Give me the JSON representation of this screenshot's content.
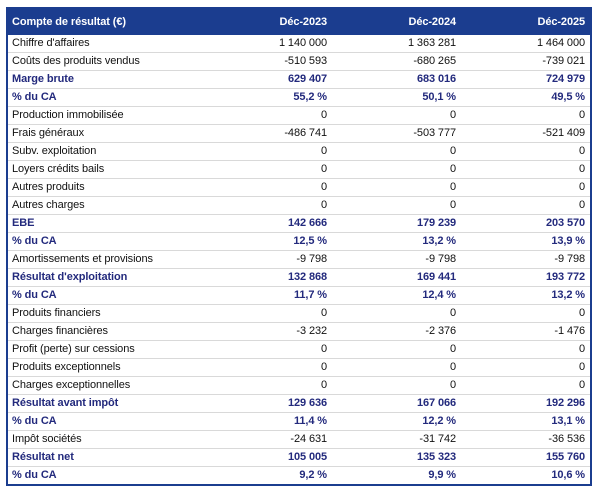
{
  "chart_data": {
    "type": "table",
    "title": "Compte de résultat (€)",
    "columns": [
      "Déc-2023",
      "Déc-2024",
      "Déc-2025"
    ],
    "rows": [
      {
        "label": "Chiffre d'affaires",
        "values": [
          "1 140 000",
          "1 363 281",
          "1 464 000"
        ],
        "bold": false
      },
      {
        "label": "Coûts des produits vendus",
        "values": [
          "-510 593",
          "-680 265",
          "-739 021"
        ],
        "bold": false
      },
      {
        "label": "Marge brute",
        "values": [
          "629 407",
          "683 016",
          "724 979"
        ],
        "bold": true
      },
      {
        "label": "% du CA",
        "values": [
          "55,2 %",
          "50,1 %",
          "49,5 %"
        ],
        "bold": true
      },
      {
        "label": "Production immobilisée",
        "values": [
          "0",
          "0",
          "0"
        ],
        "bold": false
      },
      {
        "label": "Frais généraux",
        "values": [
          "-486 741",
          "-503 777",
          "-521 409"
        ],
        "bold": false
      },
      {
        "label": "Subv. exploitation",
        "values": [
          "0",
          "0",
          "0"
        ],
        "bold": false
      },
      {
        "label": "Loyers crédits bails",
        "values": [
          "0",
          "0",
          "0"
        ],
        "bold": false
      },
      {
        "label": "Autres produits",
        "values": [
          "0",
          "0",
          "0"
        ],
        "bold": false
      },
      {
        "label": "Autres charges",
        "values": [
          "0",
          "0",
          "0"
        ],
        "bold": false
      },
      {
        "label": "EBE",
        "values": [
          "142 666",
          "179 239",
          "203 570"
        ],
        "bold": true
      },
      {
        "label": "% du CA",
        "values": [
          "12,5 %",
          "13,2 %",
          "13,9 %"
        ],
        "bold": true
      },
      {
        "label": "Amortissements et provisions",
        "values": [
          "-9 798",
          "-9 798",
          "-9 798"
        ],
        "bold": false
      },
      {
        "label": "Résultat d'exploitation",
        "values": [
          "132 868",
          "169 441",
          "193 772"
        ],
        "bold": true
      },
      {
        "label": "% du CA",
        "values": [
          "11,7 %",
          "12,4 %",
          "13,2 %"
        ],
        "bold": true
      },
      {
        "label": "Produits financiers",
        "values": [
          "0",
          "0",
          "0"
        ],
        "bold": false
      },
      {
        "label": "Charges financières",
        "values": [
          "-3 232",
          "-2 376",
          "-1 476"
        ],
        "bold": false
      },
      {
        "label": "Profit (perte) sur cessions",
        "values": [
          "0",
          "0",
          "0"
        ],
        "bold": false
      },
      {
        "label": "Produits exceptionnels",
        "values": [
          "0",
          "0",
          "0"
        ],
        "bold": false
      },
      {
        "label": "Charges exceptionnelles",
        "values": [
          "0",
          "0",
          "0"
        ],
        "bold": false
      },
      {
        "label": "Résultat avant impôt",
        "values": [
          "129 636",
          "167 066",
          "192 296"
        ],
        "bold": true
      },
      {
        "label": "% du CA",
        "values": [
          "11,4 %",
          "12,2 %",
          "13,1 %"
        ],
        "bold": true
      },
      {
        "label": "Impôt sociétés",
        "values": [
          "-24 631",
          "-31 742",
          "-36 536"
        ],
        "bold": false
      },
      {
        "label": "Résultat net",
        "values": [
          "105 005",
          "135 323",
          "155 760"
        ],
        "bold": true
      },
      {
        "label": "% du CA",
        "values": [
          "9,2 %",
          "9,9 %",
          "10,6 %"
        ],
        "bold": true
      }
    ],
    "colors": {
      "header_bg": "#1b3d8f",
      "header_text": "#ffffff",
      "bold_text": "#232a7d",
      "body_text": "#111111",
      "row_border": "#d9d9d9",
      "outer_border": "#1b3d8f"
    }
  }
}
